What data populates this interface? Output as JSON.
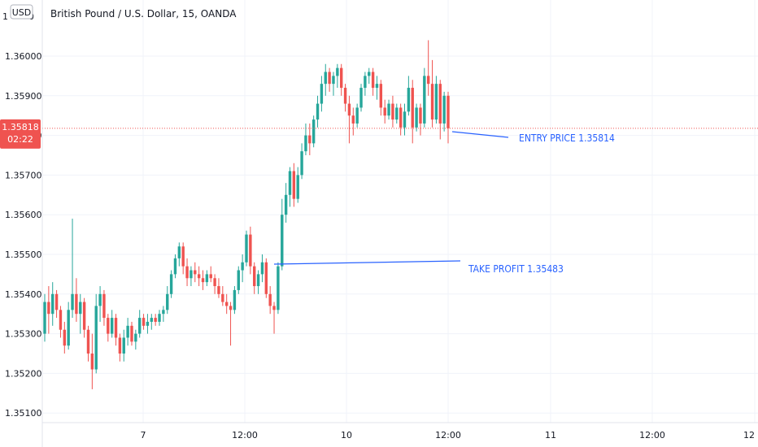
{
  "header": {
    "currency_badge": "USD",
    "title": "British Pound / U.S. Dollar, 15, OANDA",
    "scale_top_label": "1",
    "scale_top_label_2": "0"
  },
  "price_tag": {
    "price": "1.35818",
    "countdown": "02:22",
    "color": "#ef5350"
  },
  "colors": {
    "up": "#26a69a",
    "down": "#ef5350",
    "annotation": "#2962ff",
    "grid": "#f0f3fa",
    "axis_text": "#131722"
  },
  "chart_data": {
    "type": "candlestick",
    "symbol": "GBPUSD",
    "interval": "15",
    "source": "OANDA",
    "y_ticks": [
      "1.36000",
      "1.35900",
      "1.35800",
      "1.35700",
      "1.35600",
      "1.35500",
      "1.35400",
      "1.35300",
      "1.35200",
      "1.35100"
    ],
    "ylim": [
      1.3505,
      1.3615
    ],
    "x_ticks": [
      "7",
      "12:00",
      "10",
      "12:00",
      "11",
      "12:00",
      "12"
    ],
    "last_price": 1.35818,
    "annotations": [
      {
        "label": "ENTRY PRICE 1.35814",
        "price": 1.35814
      },
      {
        "label": "TAKE PROFIT 1.35483",
        "price": 1.35483
      }
    ],
    "series": [
      {
        "name": "GBPUSD",
        "ohlc": [
          [
            1.353,
            1.354,
            1.3528,
            1.3538
          ],
          [
            1.3538,
            1.3542,
            1.353,
            1.3535
          ],
          [
            1.3535,
            1.3543,
            1.3532,
            1.354
          ],
          [
            1.354,
            1.3541,
            1.3534,
            1.3536
          ],
          [
            1.3536,
            1.3537,
            1.3529,
            1.3531
          ],
          [
            1.3531,
            1.3533,
            1.3525,
            1.3527
          ],
          [
            1.3527,
            1.3538,
            1.3526,
            1.3536
          ],
          [
            1.3536,
            1.3559,
            1.3534,
            1.354
          ],
          [
            1.354,
            1.3544,
            1.3533,
            1.3535
          ],
          [
            1.3535,
            1.354,
            1.353,
            1.3538
          ],
          [
            1.3538,
            1.3539,
            1.3529,
            1.3531
          ],
          [
            1.3531,
            1.3532,
            1.3523,
            1.3525
          ],
          [
            1.3525,
            1.353,
            1.3516,
            1.3521
          ],
          [
            1.3521,
            1.354,
            1.352,
            1.3537
          ],
          [
            1.3537,
            1.3542,
            1.3533,
            1.354
          ],
          [
            1.354,
            1.3541,
            1.3532,
            1.3534
          ],
          [
            1.3534,
            1.3535,
            1.3528,
            1.353
          ],
          [
            1.353,
            1.3536,
            1.3529,
            1.3534
          ],
          [
            1.3534,
            1.3535,
            1.3527,
            1.3529
          ],
          [
            1.3529,
            1.353,
            1.3523,
            1.3525
          ],
          [
            1.3525,
            1.3531,
            1.3523,
            1.3529
          ],
          [
            1.3529,
            1.3534,
            1.3527,
            1.3532
          ],
          [
            1.3532,
            1.3533,
            1.3527,
            1.3528
          ],
          [
            1.3528,
            1.3531,
            1.3526,
            1.353
          ],
          [
            1.353,
            1.3536,
            1.3529,
            1.3534
          ],
          [
            1.3534,
            1.3535,
            1.3531,
            1.3532
          ],
          [
            1.3532,
            1.3535,
            1.353,
            1.3533
          ],
          [
            1.3533,
            1.3535,
            1.3531,
            1.3534
          ],
          [
            1.3534,
            1.3535,
            1.3532,
            1.3533
          ],
          [
            1.3533,
            1.3536,
            1.3532,
            1.3535
          ],
          [
            1.3535,
            1.3537,
            1.3533,
            1.3536
          ],
          [
            1.3536,
            1.3542,
            1.3535,
            1.354
          ],
          [
            1.354,
            1.3546,
            1.3539,
            1.3545
          ],
          [
            1.3545,
            1.355,
            1.3544,
            1.3549
          ],
          [
            1.3549,
            1.3553,
            1.3547,
            1.3552
          ],
          [
            1.3552,
            1.3553,
            1.3545,
            1.3547
          ],
          [
            1.3547,
            1.3549,
            1.3542,
            1.3544
          ],
          [
            1.3544,
            1.3547,
            1.3542,
            1.3546
          ],
          [
            1.3546,
            1.3548,
            1.3543,
            1.3545
          ],
          [
            1.3545,
            1.3547,
            1.3542,
            1.3544
          ],
          [
            1.3544,
            1.3546,
            1.3541,
            1.3543
          ],
          [
            1.3543,
            1.3546,
            1.3542,
            1.3545
          ],
          [
            1.3545,
            1.3547,
            1.3543,
            1.3544
          ],
          [
            1.3544,
            1.3545,
            1.354,
            1.3542
          ],
          [
            1.3542,
            1.3544,
            1.3539,
            1.354
          ],
          [
            1.354,
            1.3542,
            1.3537,
            1.3538
          ],
          [
            1.3538,
            1.354,
            1.3535,
            1.3537
          ],
          [
            1.3537,
            1.3538,
            1.3527,
            1.3536
          ],
          [
            1.3536,
            1.3542,
            1.3535,
            1.3541
          ],
          [
            1.3541,
            1.3547,
            1.354,
            1.3546
          ],
          [
            1.3546,
            1.355,
            1.3543,
            1.3548
          ],
          [
            1.3548,
            1.3556,
            1.3547,
            1.3555
          ],
          [
            1.3555,
            1.3557,
            1.3545,
            1.3547
          ],
          [
            1.3547,
            1.3548,
            1.354,
            1.3542
          ],
          [
            1.3542,
            1.3546,
            1.354,
            1.3545
          ],
          [
            1.3545,
            1.355,
            1.3543,
            1.3548
          ],
          [
            1.3548,
            1.3549,
            1.3539,
            1.354
          ],
          [
            1.354,
            1.3542,
            1.3535,
            1.3537
          ],
          [
            1.3537,
            1.3538,
            1.353,
            1.3536
          ],
          [
            1.3536,
            1.3548,
            1.3535,
            1.3547
          ],
          [
            1.3547,
            1.3564,
            1.3546,
            1.356
          ],
          [
            1.356,
            1.3568,
            1.3558,
            1.3565
          ],
          [
            1.3565,
            1.3572,
            1.3562,
            1.3571
          ],
          [
            1.3571,
            1.3573,
            1.3562,
            1.3564
          ],
          [
            1.3564,
            1.3572,
            1.3563,
            1.357
          ],
          [
            1.357,
            1.3578,
            1.3569,
            1.3576
          ],
          [
            1.3576,
            1.3583,
            1.3575,
            1.358
          ],
          [
            1.358,
            1.3583,
            1.3575,
            1.3578
          ],
          [
            1.3578,
            1.3585,
            1.3577,
            1.3584
          ],
          [
            1.3584,
            1.359,
            1.3582,
            1.3588
          ],
          [
            1.3588,
            1.3595,
            1.3586,
            1.3593
          ],
          [
            1.3593,
            1.3598,
            1.359,
            1.3596
          ],
          [
            1.3596,
            1.3597,
            1.3591,
            1.3593
          ],
          [
            1.3593,
            1.3596,
            1.359,
            1.3595
          ],
          [
            1.3595,
            1.3598,
            1.3592,
            1.3597
          ],
          [
            1.3597,
            1.3598,
            1.359,
            1.3592
          ],
          [
            1.3592,
            1.3593,
            1.3586,
            1.3588
          ],
          [
            1.3588,
            1.359,
            1.3578,
            1.3585
          ],
          [
            1.3585,
            1.3587,
            1.358,
            1.3583
          ],
          [
            1.3583,
            1.3588,
            1.3582,
            1.3587
          ],
          [
            1.3587,
            1.3593,
            1.3586,
            1.3592
          ],
          [
            1.3592,
            1.3596,
            1.359,
            1.3595
          ],
          [
            1.3595,
            1.3597,
            1.3593,
            1.3596
          ],
          [
            1.3596,
            1.3597,
            1.359,
            1.3592
          ],
          [
            1.3592,
            1.3595,
            1.3589,
            1.3593
          ],
          [
            1.3593,
            1.3594,
            1.3585,
            1.3587
          ],
          [
            1.3587,
            1.3589,
            1.3583,
            1.3585
          ],
          [
            1.3585,
            1.3589,
            1.3584,
            1.3588
          ],
          [
            1.3588,
            1.359,
            1.3582,
            1.3584
          ],
          [
            1.3584,
            1.3588,
            1.3583,
            1.3587
          ],
          [
            1.3587,
            1.3588,
            1.358,
            1.3582
          ],
          [
            1.3582,
            1.3588,
            1.358,
            1.3586
          ],
          [
            1.3586,
            1.3595,
            1.3585,
            1.3592
          ],
          [
            1.3592,
            1.3594,
            1.3578,
            1.3582
          ],
          [
            1.3582,
            1.3588,
            1.3581,
            1.3587
          ],
          [
            1.3587,
            1.3588,
            1.358,
            1.3583
          ],
          [
            1.3583,
            1.3597,
            1.3582,
            1.3595
          ],
          [
            1.3595,
            1.3604,
            1.359,
            1.3593
          ],
          [
            1.3593,
            1.3599,
            1.3582,
            1.3584
          ],
          [
            1.3584,
            1.3595,
            1.3583,
            1.3593
          ],
          [
            1.3593,
            1.3594,
            1.3579,
            1.3583
          ],
          [
            1.3583,
            1.3591,
            1.3581,
            1.359
          ],
          [
            1.359,
            1.3591,
            1.3578,
            1.35818
          ]
        ]
      }
    ]
  }
}
